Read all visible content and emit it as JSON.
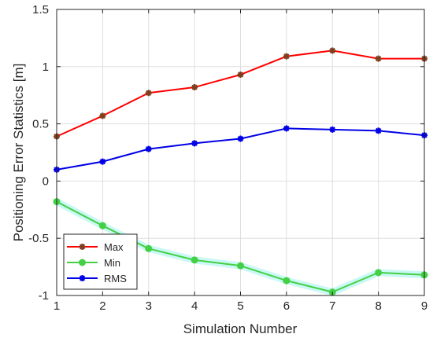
{
  "chart_data": {
    "type": "line",
    "xlabel": "Simulation Number",
    "ylabel": "Positioning Error Statistics [m]",
    "xlim": [
      1,
      9
    ],
    "ylim": [
      -1,
      1.5
    ],
    "x": [
      1,
      2,
      3,
      4,
      5,
      6,
      7,
      8,
      9
    ],
    "x_ticks": [
      "1",
      "2",
      "3",
      "4",
      "5",
      "6",
      "7",
      "8",
      "9"
    ],
    "y_ticks": [
      "1.5",
      "1",
      "0.5",
      "0",
      "-0.5",
      "-1"
    ],
    "grid": true,
    "legend_position": "bottom-left",
    "series": [
      {
        "name": "Max",
        "color": "#ff0000",
        "marker_color": "#7f3f1f",
        "marker": "star",
        "values": [
          0.39,
          0.57,
          0.77,
          0.82,
          0.93,
          1.09,
          1.14,
          1.07,
          1.07
        ]
      },
      {
        "name": "Min",
        "color": "#44d044",
        "marker_color": "#44d044",
        "marker": "circle",
        "values": [
          -0.18,
          -0.39,
          -0.59,
          -0.69,
          -0.74,
          -0.87,
          -0.97,
          -0.8,
          -0.82
        ]
      },
      {
        "name": "RMS",
        "color": "#0000e6",
        "marker_color": "#0000e6",
        "marker": "star",
        "values": [
          0.1,
          0.17,
          0.28,
          0.33,
          0.37,
          0.46,
          0.45,
          0.44,
          0.4
        ]
      }
    ]
  }
}
